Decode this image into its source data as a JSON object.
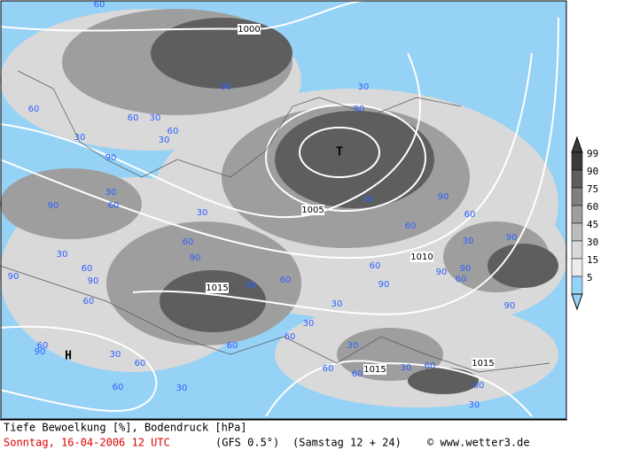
{
  "map": {
    "legend": {
      "levels": [
        99,
        90,
        75,
        60,
        45,
        30,
        15,
        5
      ],
      "colors": [
        "#3a3a3a",
        "#5e5e5e",
        "#808080",
        "#9e9e9e",
        "#bdbdbd",
        "#d9d9d9",
        "#ececec",
        "#96d2f5"
      ]
    },
    "isobar_labels": [
      "1000",
      "1005",
      "1010",
      "1015",
      "1015",
      "1015"
    ],
    "pressure_centers": [
      "T",
      "H"
    ],
    "cloud_labels": [
      "60",
      "90",
      "60",
      "60",
      "30",
      "30",
      "60",
      "90",
      "30",
      "90",
      "60",
      "30",
      "30",
      "60",
      "90",
      "30",
      "60",
      "90",
      "90",
      "60",
      "90",
      "60",
      "30",
      "30",
      "90",
      "30",
      "90",
      "60",
      "60",
      "30",
      "90",
      "60",
      "90",
      "90",
      "60",
      "90",
      "90",
      "30",
      "60",
      "60",
      "30",
      "60",
      "90",
      "60",
      "60",
      "30",
      "60",
      "60",
      "30",
      "60",
      "60",
      "30",
      "30"
    ]
  },
  "footer": {
    "product": "Tiefe Bewoelkung [%], Bodendruck [hPa]",
    "date": "Sonntag, 16-04-2006  12 UTC",
    "model": "(GFS 0.5°)",
    "run": "(Samstag 12 + 24)",
    "credit": "© www.wetter3.de"
  }
}
